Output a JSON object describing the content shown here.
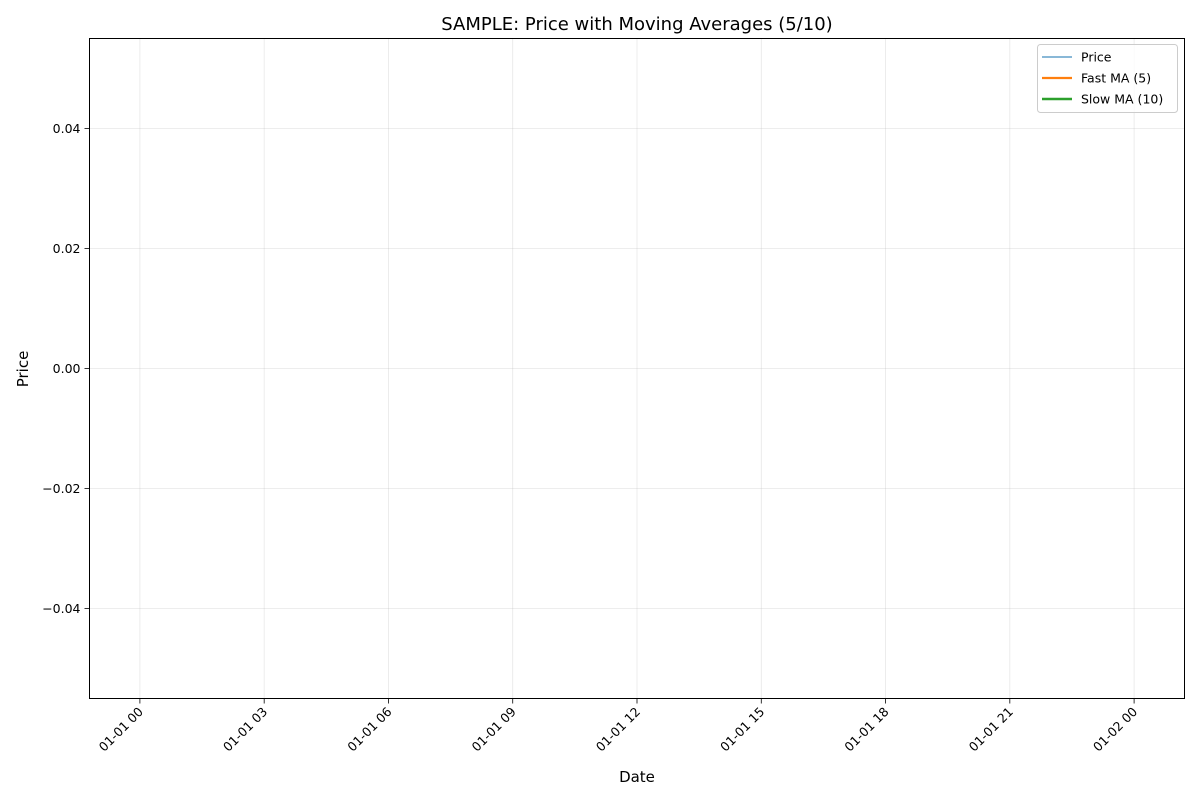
{
  "chart_data": {
    "type": "line",
    "title": "SAMPLE: Price with Moving Averages (5/10)",
    "xlabel": "Date",
    "ylabel": "Price",
    "x_ticks": [
      "01-01 00",
      "01-01 03",
      "01-01 06",
      "01-01 09",
      "01-01 12",
      "01-01 15",
      "01-01 18",
      "01-01 21",
      "01-02 00"
    ],
    "xlim": [
      "2024-12-31T22:47",
      "2025-01-02T01:13"
    ],
    "y_ticks": [
      "0.04",
      "0.02",
      "0.00",
      "−0.02",
      "−0.04"
    ],
    "ylim": [
      -0.055,
      0.055
    ],
    "grid": true,
    "legend_position": "top-right",
    "series": [
      {
        "name": "Price",
        "color": "#1f77b4",
        "values": []
      },
      {
        "name": "Fast MA (5)",
        "color": "#ff7f0e",
        "values": []
      },
      {
        "name": "Slow MA (10)",
        "color": "#2ca02c",
        "values": []
      }
    ]
  }
}
